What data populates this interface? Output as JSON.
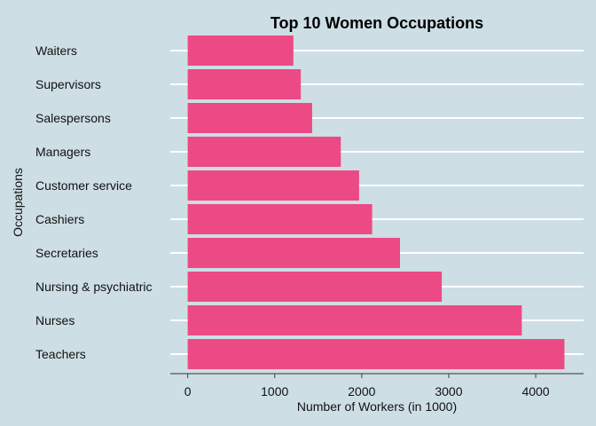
{
  "chart_data": {
    "type": "bar",
    "orientation": "horizontal",
    "title": "Top 10 Women Occupations",
    "xlabel": "Number of Workers (in 1000)",
    "ylabel": "Occupations",
    "categories": [
      "Waiters",
      "Supervisors",
      "Salespersons",
      "Managers",
      "Customer service",
      "Cashiers",
      "Secretaries",
      "Nursing & psychiatric",
      "Nurses",
      "Teachers"
    ],
    "values": [
      1215,
      1300,
      1430,
      1760,
      1970,
      2120,
      2440,
      2920,
      3840,
      4330
    ],
    "xticks": [
      "0",
      "1000",
      "2000",
      "3000",
      "4000"
    ],
    "xlim": [
      -200,
      4550
    ],
    "grid": "horizontal",
    "colors": {
      "bar": "#ec4a84",
      "background": "#cddee5",
      "grid": "#ffffff",
      "axis": "#555555"
    }
  }
}
